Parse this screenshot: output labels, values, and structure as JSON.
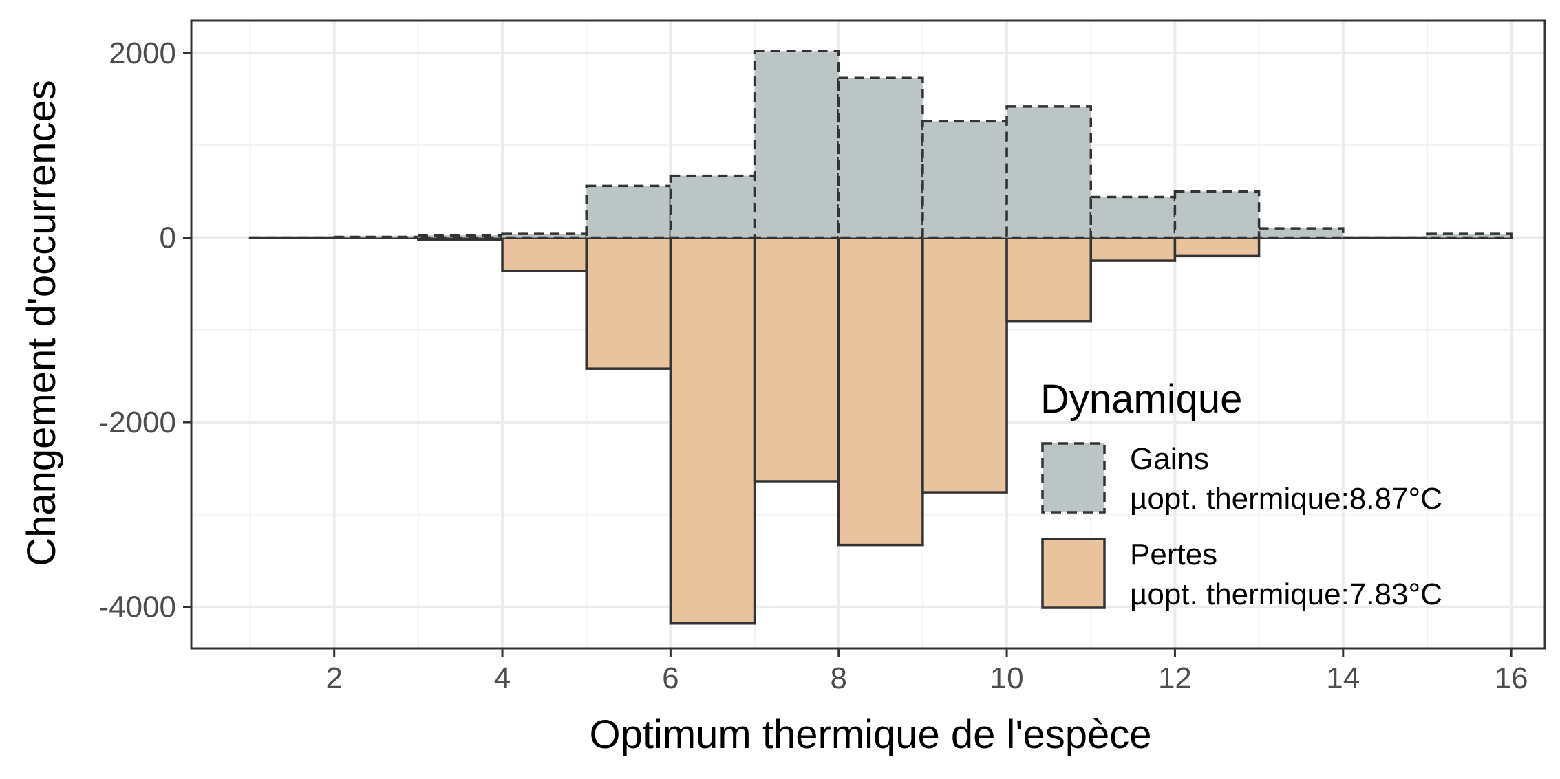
{
  "chart_data": {
    "type": "bar",
    "xlabel": "Optimum thermique de l'espèce",
    "ylabel": "Changement d'occurrences",
    "xlim": [
      0.3,
      16.4
    ],
    "ylim": [
      -4450,
      2350
    ],
    "x_ticks": [
      2,
      4,
      6,
      8,
      10,
      12,
      14,
      16
    ],
    "x_tick_labels": [
      "2",
      "4",
      "6",
      "8",
      "10",
      "12",
      "14",
      "16"
    ],
    "y_ticks": [
      2000,
      0,
      -2000,
      -4000
    ],
    "y_tick_labels": [
      "2000",
      "0",
      "-2000",
      "-4000"
    ],
    "bin_edges": [
      1,
      2,
      3,
      4,
      5,
      6,
      7,
      8,
      9,
      10,
      11,
      12,
      13,
      14,
      15,
      16
    ],
    "grid": true,
    "legend_position": "bottom-right inside",
    "series": [
      {
        "name": "Gains",
        "legend_detail": "µopt. thermique:8.87°C",
        "values": [
          0,
          8,
          25,
          40,
          560,
          670,
          2020,
          1730,
          1260,
          1420,
          440,
          500,
          100,
          0,
          40
        ],
        "fill": "#bcc5c5",
        "stroke": "#333333",
        "line_style": "dashed"
      },
      {
        "name": "Pertes",
        "legend_detail": "µopt. thermique:7.83°C",
        "values": [
          0,
          0,
          -20,
          -360,
          -1420,
          -4180,
          -2640,
          -3330,
          -2760,
          -910,
          -250,
          -200,
          0,
          0,
          0
        ],
        "fill": "#e8c39d",
        "stroke": "#333333",
        "line_style": "solid"
      }
    ],
    "legend": {
      "title": "Dynamique"
    }
  },
  "colors": {
    "gains_fill": "#bcc5c5",
    "pertes_fill": "#e8c39d",
    "outline": "#333333",
    "grid_major": "#ebebeb",
    "grid_minor": "#f2f2f2",
    "panel_border": "#333333"
  }
}
